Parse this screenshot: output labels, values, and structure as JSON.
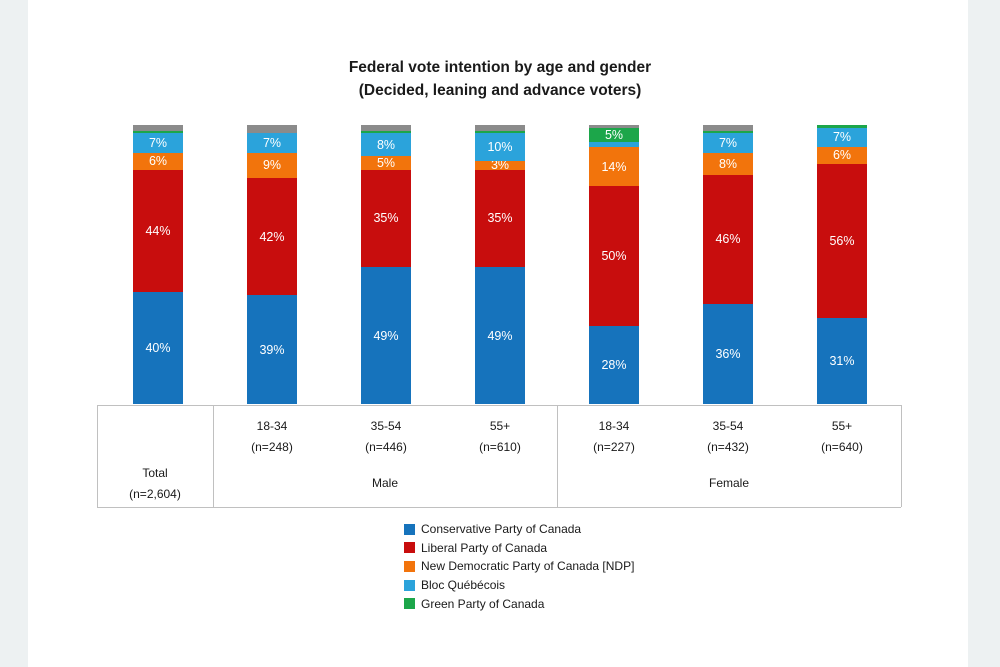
{
  "window": {
    "background": "#ffffff",
    "margin_color": "#edf1f2",
    "line_color": "#c0c0c0",
    "text_color": "#1a1a1a",
    "label_text_color": "#ffffff"
  },
  "chart_data": {
    "type": "bar",
    "variant": "stacked-column-100pct",
    "title": "Federal vote intention by age and gender",
    "subtitle": "(Decided, leaning and advance voters)",
    "value_format": "percent",
    "ylim": [
      0,
      100
    ],
    "grid": false,
    "legend_position": "bottom-center",
    "categories": [
      "Total (n=2,604)",
      "Male 18-34 (n=248)",
      "Male 35-54 (n=446)",
      "Male 55+ (n=610)",
      "Female 18-34 (n=227)",
      "Female 35-54 (n=432)",
      "Female 55+ (n=640)"
    ],
    "axis": {
      "age_row": [
        [
          "",
          ""
        ],
        [
          "18-34",
          "(n=248)"
        ],
        [
          "35-54",
          "(n=446)"
        ],
        [
          "55+",
          "(n=610)"
        ],
        [
          "18-34",
          "(n=227)"
        ],
        [
          "35-54",
          "(n=432)"
        ],
        [
          "55+",
          "(n=640)"
        ]
      ],
      "group_row": [
        {
          "lines": [
            "Total",
            "(n=2,604)"
          ],
          "span": 1
        },
        {
          "lines": [
            "Male"
          ],
          "span": 3
        },
        {
          "lines": [
            "Female"
          ],
          "span": 3
        }
      ]
    },
    "series": [
      {
        "name": "Conservative Party of Canada",
        "color": "#1673BC",
        "in_legend": true,
        "values": [
          40,
          39,
          49,
          49,
          28,
          36,
          31
        ],
        "labels": [
          "40%",
          "39%",
          "49%",
          "49%",
          "28%",
          "36%",
          "31%"
        ]
      },
      {
        "name": "Liberal Party of Canada",
        "color": "#C80D0D",
        "in_legend": true,
        "values": [
          44,
          42,
          35,
          35,
          50,
          46,
          56
        ],
        "labels": [
          "44%",
          "42%",
          "35%",
          "35%",
          "50%",
          "46%",
          "56%"
        ]
      },
      {
        "name": "New Democratic Party of Canada [NDP]",
        "color": "#F2740C",
        "in_legend": true,
        "values": [
          6,
          9,
          5,
          3,
          14,
          8,
          6
        ],
        "labels": [
          "6%",
          "9%",
          "5%",
          "3%",
          "14%",
          "8%",
          "6%"
        ]
      },
      {
        "name": "Bloc Québécois",
        "color": "#2BA3DB",
        "in_legend": true,
        "values": [
          7,
          7,
          8,
          10,
          2,
          7,
          7
        ],
        "labels": [
          "7%",
          "7%",
          "8%",
          "10%",
          "",
          "7%",
          "7%"
        ]
      },
      {
        "name": "Green Party of Canada",
        "color": "#1CA64A",
        "in_legend": true,
        "values": [
          1,
          0,
          1,
          1,
          5,
          1,
          1
        ],
        "labels": [
          "",
          "",
          "",
          "",
          "5%",
          "",
          ""
        ]
      },
      {
        "name": "Other (gray, not in legend)",
        "color": "#8B8B8B",
        "in_legend": false,
        "values": [
          2,
          3,
          2,
          2,
          1,
          2,
          0
        ],
        "labels": [
          "",
          "",
          "",
          "",
          "",
          "",
          ""
        ]
      }
    ],
    "legend": [
      "Conservative Party of Canada",
      "Liberal Party of Canada",
      "New Democratic Party of Canada [NDP]",
      "Bloc Québécois",
      "Green Party of Canada"
    ]
  }
}
